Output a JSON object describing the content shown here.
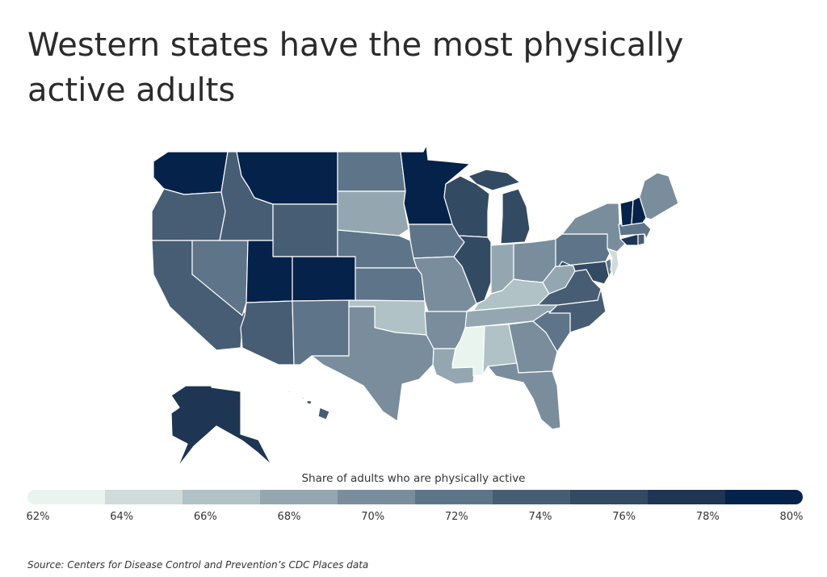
{
  "title": "Western states have the most physically active adults",
  "source": "Source:  Centers for Disease Control and Prevention’s CDC Places data",
  "legend": {
    "title": "Share of adults who are physically active",
    "ticks": [
      "62%",
      "64%",
      "66%",
      "68%",
      "70%",
      "72%",
      "74%",
      "76%",
      "78%",
      "80%"
    ],
    "colors": [
      "#e9f4ef",
      "#cfdcda",
      "#b1c2c6",
      "#94a7b1",
      "#7a8d9c",
      "#5e7489",
      "#475d74",
      "#334a63",
      "#1e3553",
      "#05224a"
    ]
  },
  "map": {
    "colors": {
      "c1": "#e9f4ef",
      "c2": "#cfdcda",
      "c3": "#b1c2c6",
      "c4": "#94a7b1",
      "c5": "#7a8d9c",
      "c6": "#5e7489",
      "c7": "#475d74",
      "c8": "#334a63",
      "c9": "#1e3553",
      "c10": "#05224a",
      "border": "#ffffff"
    },
    "states": {
      "WA": "c10",
      "OR": "c7",
      "CA": "c7",
      "ID": "c7",
      "NV": "c6",
      "MT": "c10",
      "WY": "c7",
      "UT": "c10",
      "CO": "c10",
      "AZ": "c7",
      "NM": "c6",
      "ND": "c6",
      "SD": "c4",
      "NE": "c6",
      "KS": "c6",
      "OK": "c3",
      "TX": "c5",
      "MN": "c10",
      "IA": "c6",
      "MO": "c5",
      "AR": "c5",
      "LA": "c4",
      "WI": "c8",
      "IL": "c8",
      "MI": "c8",
      "IN": "c4",
      "OH": "c5",
      "KY": "c3",
      "TN": "c4",
      "MS": "c1",
      "AL": "c3",
      "GA": "c5",
      "FL": "c5",
      "SC": "c6",
      "NC": "c7",
      "VA": "c7",
      "WV": "c4",
      "PA": "c6",
      "NY": "c5",
      "VT": "c10",
      "NH": "c10",
      "ME": "c5",
      "MA": "c6",
      "RI": "c7",
      "CT": "c9",
      "NJ": "c2",
      "DE": "c6",
      "MD": "c8",
      "AK": "c9",
      "HI": "c7"
    }
  }
}
